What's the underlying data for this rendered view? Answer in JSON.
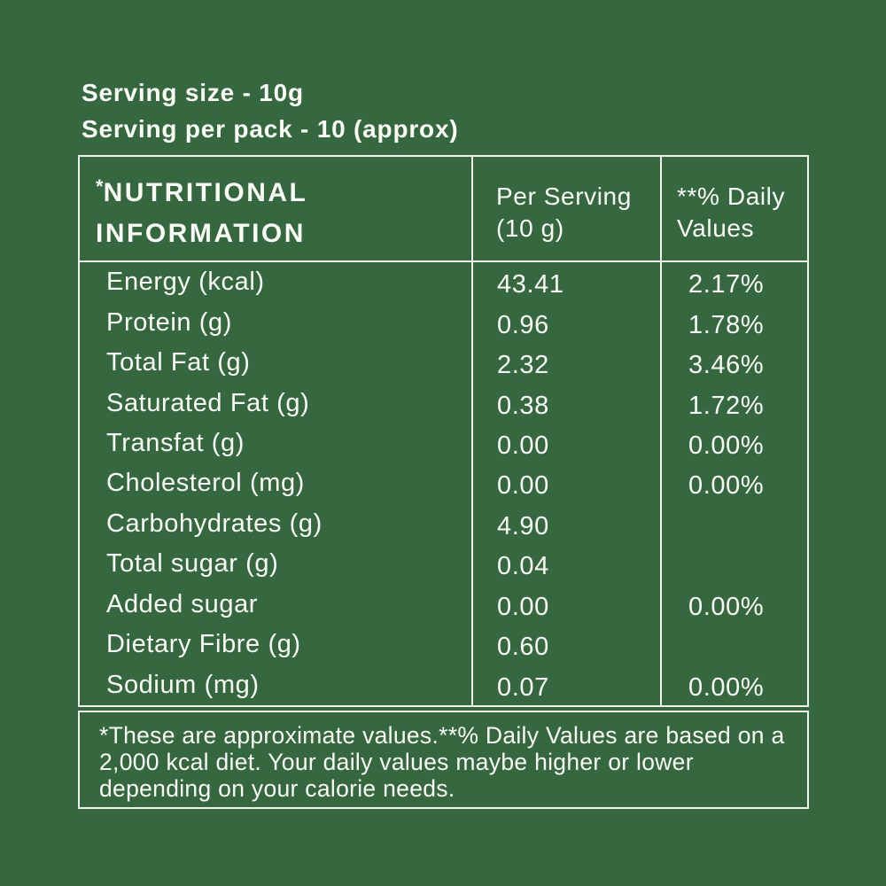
{
  "colors": {
    "background": "#35683E",
    "border": "#F2F1EC",
    "text": "#FAFAF6"
  },
  "label": {
    "serving_size": "Serving size - 10g",
    "serving_per_pack": "Serving per pack - 10 (approx)"
  },
  "table": {
    "header": {
      "title_asterisk": "*",
      "title_line1": "NUTRITIONAL",
      "title_line2": "INFORMATION",
      "per_serving_line1": "Per Serving",
      "per_serving_line2": "(10 g)",
      "daily_values_line1": "**% Daily",
      "daily_values_line2": "Values"
    },
    "rows": [
      {
        "label": "Energy (kcal)",
        "per_serving": "43.41",
        "daily_value": "2.17%"
      },
      {
        "label": "Protein (g)",
        "per_serving": "0.96",
        "daily_value": "1.78%"
      },
      {
        "label": "Total Fat (g)",
        "per_serving": "2.32",
        "daily_value": "3.46%"
      },
      {
        "label": "Saturated Fat (g)",
        "per_serving": "0.38",
        "daily_value": "1.72%"
      },
      {
        "label": "Transfat (g)",
        "per_serving": "0.00",
        "daily_value": "0.00%"
      },
      {
        "label": "Cholesterol (mg)",
        "per_serving": "0.00",
        "daily_value": "0.00%"
      },
      {
        "label": "Carbohydrates (g)",
        "per_serving": "4.90",
        "daily_value": ""
      },
      {
        "label": "Total sugar (g)",
        "per_serving": "0.04",
        "daily_value": ""
      },
      {
        "label": "Added sugar",
        "per_serving": "0.00",
        "daily_value": "0.00%"
      },
      {
        "label": "Dietary Fibre (g)",
        "per_serving": "0.60",
        "daily_value": ""
      },
      {
        "label": "Sodium (mg)",
        "per_serving": "0.07",
        "daily_value": "0.00%"
      }
    ]
  },
  "footnote": "*These are approximate values.**% Daily Values are based on a 2,000 kcal diet. Your daily values maybe higher or lower depending on your calorie needs."
}
